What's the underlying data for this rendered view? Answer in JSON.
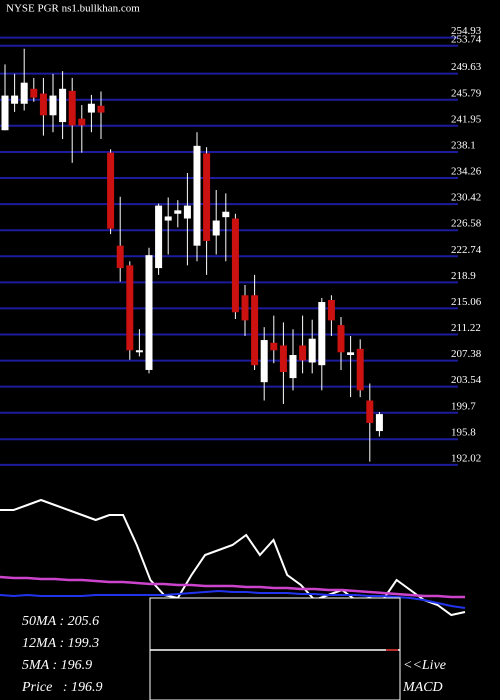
{
  "chart_data": {
    "type": "candlestick",
    "title": "NYSE PGR ns1.bullkhan.com",
    "ylim": [
      189.5,
      256.5
    ],
    "yticks": [
      254.93,
      253.74,
      249.63,
      245.79,
      241.95,
      238.1,
      234.26,
      230.42,
      226.58,
      222.74,
      218.9,
      215.06,
      211.22,
      207.38,
      203.54,
      199.7,
      195.8,
      192.02
    ],
    "grid": true,
    "grid_color": "#1c1c9c",
    "up_color": "#ffffff",
    "down_color": "#cc1111",
    "open": [
      241.3,
      245.2,
      245.2,
      247.4,
      246.7,
      243.5,
      242.5,
      247.1,
      243.0,
      243.9,
      244.9,
      238.0,
      224.3,
      221.4,
      208.6,
      206.0,
      221.0,
      228.0,
      229.0,
      228.3,
      224.3,
      237.9,
      225.8,
      228.5,
      228.3,
      217.0,
      217.0,
      204.2,
      210.0,
      209.6,
      204.8,
      209.6,
      207.1,
      206.7,
      216.3,
      212.6,
      208.2,
      209.1,
      201.5,
      197.0
    ],
    "high": [
      251.0,
      249.6,
      253.3,
      249.0,
      249.0,
      249.6,
      250.0,
      249.0,
      245.0,
      246.5,
      247.0,
      238.5,
      231.5,
      222.0,
      212.0,
      224.0,
      230.5,
      231.4,
      231.0,
      235.0,
      241.0,
      238.8,
      232.5,
      232.0,
      229.0,
      218.5,
      220.0,
      212.3,
      214.0,
      213.0,
      212.0,
      214.0,
      213.4,
      216.6,
      217.0,
      213.8,
      211.0,
      210.5,
      204.0,
      199.8
    ],
    "low": [
      241.3,
      244.0,
      244.2,
      245.5,
      240.5,
      241.0,
      240.0,
      236.5,
      238.0,
      241.0,
      240.0,
      226.0,
      219.0,
      207.5,
      208.0,
      205.5,
      220.0,
      223.0,
      227.0,
      221.4,
      222.0,
      220.0,
      223.0,
      222.0,
      213.5,
      211.0,
      206.0,
      201.5,
      207.0,
      201.0,
      203.0,
      205.5,
      205.5,
      203.0,
      211.0,
      206.0,
      202.0,
      202.0,
      192.5,
      196.2
    ],
    "close": [
      246.4,
      246.4,
      248.3,
      246.1,
      243.5,
      246.4,
      247.4,
      242.0,
      242.0,
      245.2,
      243.9,
      226.8,
      221.0,
      208.9,
      208.9,
      222.9,
      230.2,
      228.6,
      229.5,
      230.2,
      239.0,
      225.0,
      228.0,
      229.3,
      214.5,
      213.3,
      206.7,
      210.4,
      208.9,
      205.7,
      208.2,
      207.4,
      210.6,
      216.0,
      213.3,
      208.6,
      208.6,
      203.0,
      198.2,
      199.5
    ],
    "indicator_ylim": [
      0,
      130
    ],
    "indicators": [
      {
        "color": "#ffffff",
        "values": [
          110,
          110,
          115,
          120,
          115,
          110,
          105,
          100,
          105,
          105,
          75,
          40,
          25,
          22,
          45,
          65,
          70,
          75,
          85,
          65,
          80,
          45,
          35,
          20,
          25,
          30,
          20,
          22,
          20,
          40,
          30,
          20,
          15,
          5,
          8
        ]
      },
      {
        "color": "#cc44cc",
        "values": [
          43,
          42,
          42,
          41,
          41,
          40,
          40,
          39,
          38,
          38,
          37,
          36,
          36,
          35,
          35,
          34,
          34,
          34,
          33,
          33,
          32,
          32,
          31,
          31,
          30,
          30,
          29,
          28,
          27,
          26,
          25,
          24,
          24,
          23,
          23
        ]
      },
      {
        "color": "#2233ee",
        "values": [
          25,
          24,
          25,
          24,
          24,
          24,
          24,
          25,
          25,
          25,
          25,
          25,
          25,
          26,
          27,
          28,
          29,
          28,
          28,
          27,
          27,
          27,
          26,
          26,
          25,
          25,
          25,
          24,
          24,
          23,
          22,
          20,
          17,
          14,
          12
        ]
      }
    ],
    "stats": [
      "50MA : 205.6",
      "12MA : 199.3",
      "5MA : 196.9",
      "Price   : 196.9"
    ],
    "live_link": "<<Live",
    "panel_title": "MACD"
  }
}
